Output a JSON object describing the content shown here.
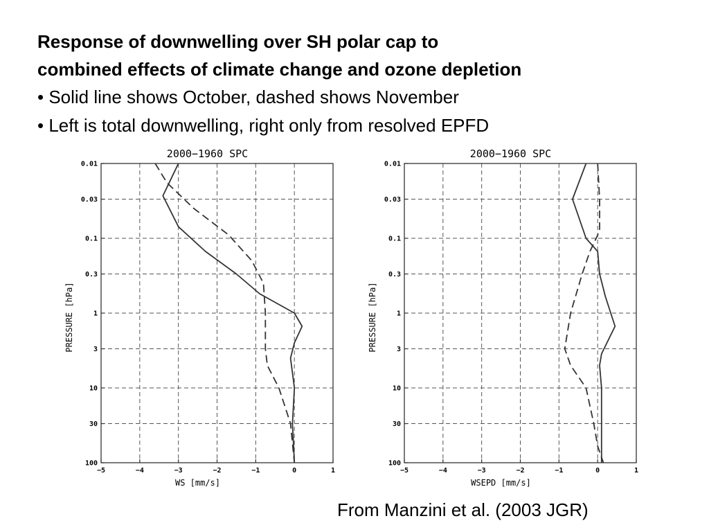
{
  "slide": {
    "title_line1": "Response of downwelling over SH polar cap to",
    "title_line2": "combined effects of climate change and ozone depletion",
    "bullets": [
      "• Solid line shows October, dashed shows November",
      "• Left is total downwelling, right only from resolved EPFD"
    ],
    "citation": "From Manzini et al. (2003 JGR)"
  },
  "chart_data": [
    {
      "type": "line",
      "title": "2000−1960 SPC",
      "xlabel": "WS [mm/s]",
      "ylabel": "PRESSURE [hPa]",
      "xlim": [
        -5,
        1
      ],
      "ylim": [
        100,
        0.01
      ],
      "y_scale": "log",
      "y_reversed": true,
      "x_ticks": [
        -5,
        -4,
        -3,
        -2,
        -1,
        0,
        1
      ],
      "y_ticks": [
        0.01,
        0.03,
        0.1,
        0.3,
        1,
        3,
        10,
        30,
        100
      ],
      "y_tick_labels": [
        "0.01",
        "0.03",
        "0.1",
        "0.3",
        "1",
        "3",
        "10",
        "30",
        "100"
      ],
      "grid": "dashed",
      "series": [
        {
          "style": "solid",
          "color": "#333333",
          "points": [
            [
              -3.0,
              0.01
            ],
            [
              -3.4,
              0.027
            ],
            [
              -3.0,
              0.07
            ],
            [
              -2.3,
              0.15
            ],
            [
              -1.5,
              0.3
            ],
            [
              -0.9,
              0.55
            ],
            [
              0.0,
              1.0
            ],
            [
              0.2,
              1.5
            ],
            [
              0.0,
              2.5
            ],
            [
              -0.1,
              4.0
            ],
            [
              0.0,
              10.0
            ],
            [
              -0.05,
              30.0
            ],
            [
              0.0,
              100.0
            ]
          ]
        },
        {
          "style": "dashed",
          "color": "#333333",
          "points": [
            [
              -3.6,
              0.01
            ],
            [
              -3.3,
              0.018
            ],
            [
              -2.6,
              0.04
            ],
            [
              -1.7,
              0.09
            ],
            [
              -1.1,
              0.2
            ],
            [
              -0.8,
              0.4
            ],
            [
              -0.75,
              1.0
            ],
            [
              -0.75,
              3.0
            ],
            [
              -0.7,
              5.0
            ],
            [
              -0.4,
              10.0
            ],
            [
              -0.1,
              30.0
            ],
            [
              0.0,
              100.0
            ]
          ]
        }
      ]
    },
    {
      "type": "line",
      "title": "2000−1960 SPC",
      "xlabel": "WSEPD [mm/s]",
      "ylabel": "PRESSURE [hPa]",
      "xlim": [
        -5,
        1
      ],
      "ylim": [
        100,
        0.01
      ],
      "y_scale": "log",
      "y_reversed": true,
      "x_ticks": [
        -5,
        -4,
        -3,
        -2,
        -1,
        0,
        1
      ],
      "y_ticks": [
        0.01,
        0.03,
        0.1,
        0.3,
        1,
        3,
        10,
        30,
        100
      ],
      "y_tick_labels": [
        "0.01",
        "0.03",
        "0.1",
        "0.3",
        "1",
        "3",
        "10",
        "30",
        "100"
      ],
      "grid": "dashed",
      "series": [
        {
          "style": "solid",
          "color": "#333333",
          "points": [
            [
              -0.3,
              0.01
            ],
            [
              -0.65,
              0.03
            ],
            [
              -0.3,
              0.1
            ],
            [
              0.0,
              0.15
            ],
            [
              0.05,
              0.3
            ],
            [
              0.2,
              0.6
            ],
            [
              0.45,
              1.5
            ],
            [
              0.1,
              3.5
            ],
            [
              0.05,
              5.0
            ],
            [
              0.1,
              10.0
            ],
            [
              0.1,
              30.0
            ],
            [
              0.1,
              100.0
            ]
          ]
        },
        {
          "style": "dashed",
          "color": "#333333",
          "points": [
            [
              0.0,
              0.01
            ],
            [
              0.05,
              0.03
            ],
            [
              0.05,
              0.08
            ],
            [
              -0.2,
              0.15
            ],
            [
              -0.4,
              0.3
            ],
            [
              -0.7,
              1.0
            ],
            [
              -0.85,
              3.0
            ],
            [
              -0.7,
              5.0
            ],
            [
              -0.3,
              10.0
            ],
            [
              -0.1,
              30.0
            ],
            [
              0.0,
              60.0
            ],
            [
              0.15,
              100.0
            ]
          ]
        }
      ]
    }
  ]
}
